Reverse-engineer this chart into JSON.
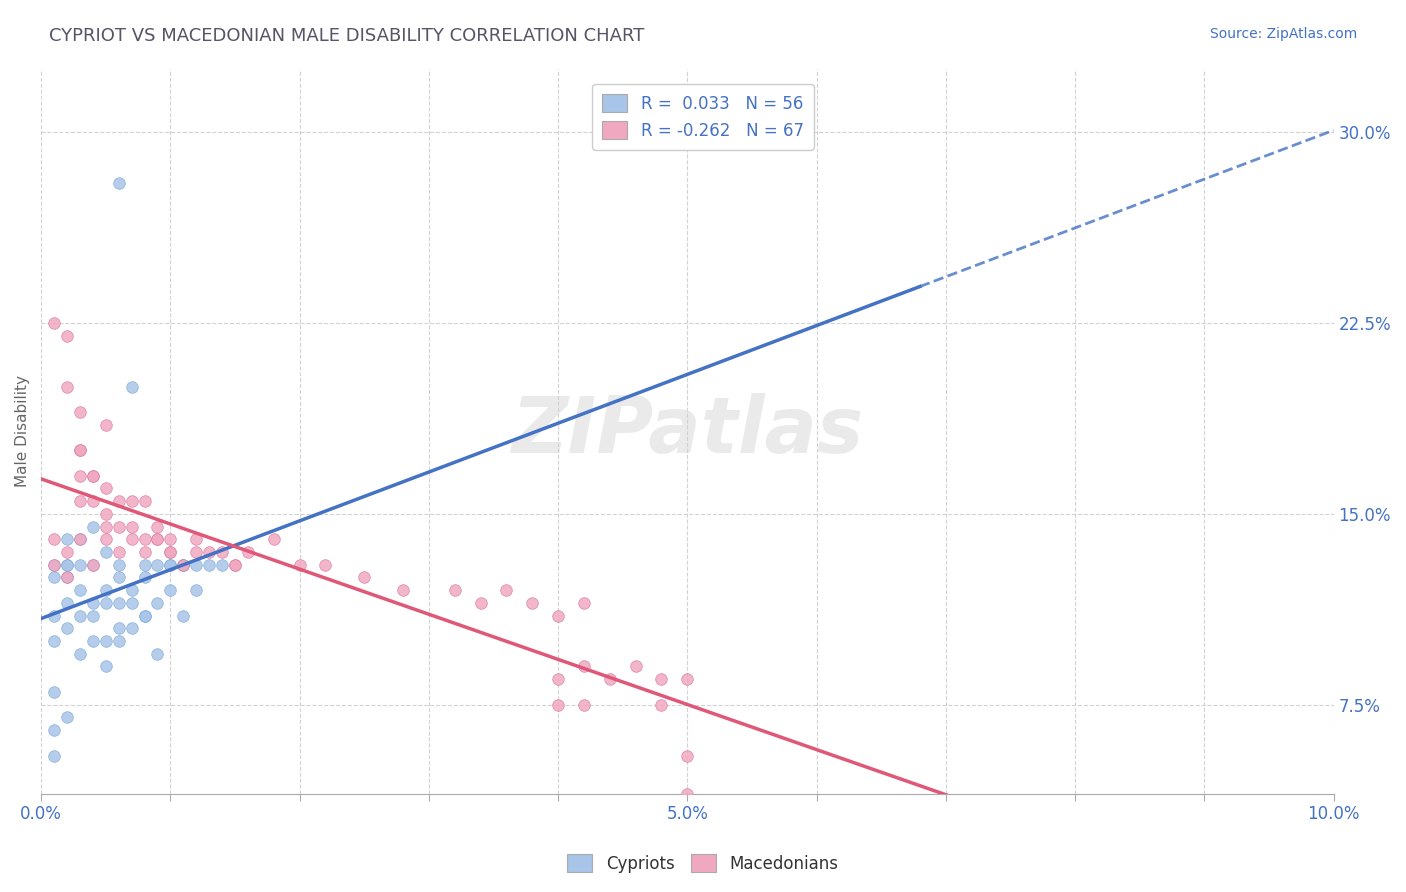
{
  "title": "CYPRIOT VS MACEDONIAN MALE DISABILITY CORRELATION CHART",
  "source_text": "Source: ZipAtlas.com",
  "ylabel": "Male Disability",
  "xlim": [
    0.0,
    0.1
  ],
  "ylim": [
    0.04,
    0.325
  ],
  "xticks": [
    0.0,
    0.01,
    0.02,
    0.03,
    0.04,
    0.05,
    0.06,
    0.07,
    0.08,
    0.09,
    0.1
  ],
  "xtick_labels": [
    "0.0%",
    "",
    "",
    "",
    "",
    "5.0%",
    "",
    "",
    "",
    "",
    "10.0%"
  ],
  "yticks": [
    0.075,
    0.15,
    0.225,
    0.3
  ],
  "ytick_labels": [
    "7.5%",
    "15.0%",
    "22.5%",
    "30.0%"
  ],
  "blue_color": "#a8c4e8",
  "pink_color": "#f0a8c0",
  "blue_line_color": "#4472c4",
  "pink_line_color": "#e05878",
  "R_blue": 0.033,
  "N_blue": 56,
  "R_pink": -0.262,
  "N_pink": 67,
  "legend_label_blue": "Cypriots",
  "legend_label_pink": "Macedonians",
  "cypriot_x": [
    0.006,
    0.007,
    0.008,
    0.009,
    0.01,
    0.011,
    0.012,
    0.013,
    0.014,
    0.002,
    0.002,
    0.002,
    0.003,
    0.003,
    0.004,
    0.004,
    0.004,
    0.005,
    0.005,
    0.005,
    0.006,
    0.006,
    0.006,
    0.007,
    0.007,
    0.008,
    0.008,
    0.009,
    0.009,
    0.01,
    0.01,
    0.011,
    0.011,
    0.012,
    0.001,
    0.001,
    0.001,
    0.002,
    0.002,
    0.003,
    0.003,
    0.004,
    0.005,
    0.006,
    0.007,
    0.008,
    0.001,
    0.001,
    0.002,
    0.003,
    0.004,
    0.005,
    0.006,
    0.001,
    0.001,
    0.002
  ],
  "cypriot_y": [
    0.28,
    0.2,
    0.13,
    0.13,
    0.13,
    0.13,
    0.13,
    0.13,
    0.13,
    0.125,
    0.13,
    0.14,
    0.12,
    0.13,
    0.11,
    0.115,
    0.13,
    0.1,
    0.115,
    0.12,
    0.105,
    0.115,
    0.125,
    0.115,
    0.12,
    0.11,
    0.125,
    0.095,
    0.115,
    0.12,
    0.13,
    0.11,
    0.13,
    0.12,
    0.08,
    0.1,
    0.11,
    0.105,
    0.115,
    0.095,
    0.11,
    0.1,
    0.09,
    0.1,
    0.105,
    0.11,
    0.125,
    0.13,
    0.13,
    0.14,
    0.145,
    0.135,
    0.13,
    0.065,
    0.055,
    0.07
  ],
  "macedonian_x": [
    0.001,
    0.001,
    0.002,
    0.002,
    0.002,
    0.003,
    0.003,
    0.003,
    0.004,
    0.004,
    0.005,
    0.005,
    0.005,
    0.006,
    0.006,
    0.007,
    0.007,
    0.008,
    0.008,
    0.009,
    0.009,
    0.01,
    0.01,
    0.011,
    0.012,
    0.013,
    0.014,
    0.015,
    0.016,
    0.018,
    0.02,
    0.022,
    0.025,
    0.028,
    0.032,
    0.034,
    0.036,
    0.038,
    0.04,
    0.042,
    0.003,
    0.004,
    0.005,
    0.006,
    0.007,
    0.008,
    0.009,
    0.01,
    0.012,
    0.015,
    0.04,
    0.042,
    0.044,
    0.046,
    0.048,
    0.05,
    0.001,
    0.002,
    0.003,
    0.003,
    0.004,
    0.005,
    0.04,
    0.042,
    0.048,
    0.05,
    0.05
  ],
  "macedonian_y": [
    0.13,
    0.14,
    0.125,
    0.135,
    0.2,
    0.14,
    0.155,
    0.19,
    0.13,
    0.165,
    0.14,
    0.16,
    0.185,
    0.135,
    0.155,
    0.14,
    0.155,
    0.135,
    0.155,
    0.14,
    0.145,
    0.135,
    0.14,
    0.13,
    0.14,
    0.135,
    0.135,
    0.13,
    0.135,
    0.14,
    0.13,
    0.13,
    0.125,
    0.12,
    0.12,
    0.115,
    0.12,
    0.115,
    0.11,
    0.115,
    0.175,
    0.165,
    0.15,
    0.145,
    0.145,
    0.14,
    0.14,
    0.135,
    0.135,
    0.13,
    0.085,
    0.09,
    0.085,
    0.09,
    0.085,
    0.085,
    0.225,
    0.22,
    0.165,
    0.175,
    0.155,
    0.145,
    0.075,
    0.075,
    0.075,
    0.055,
    0.04
  ]
}
